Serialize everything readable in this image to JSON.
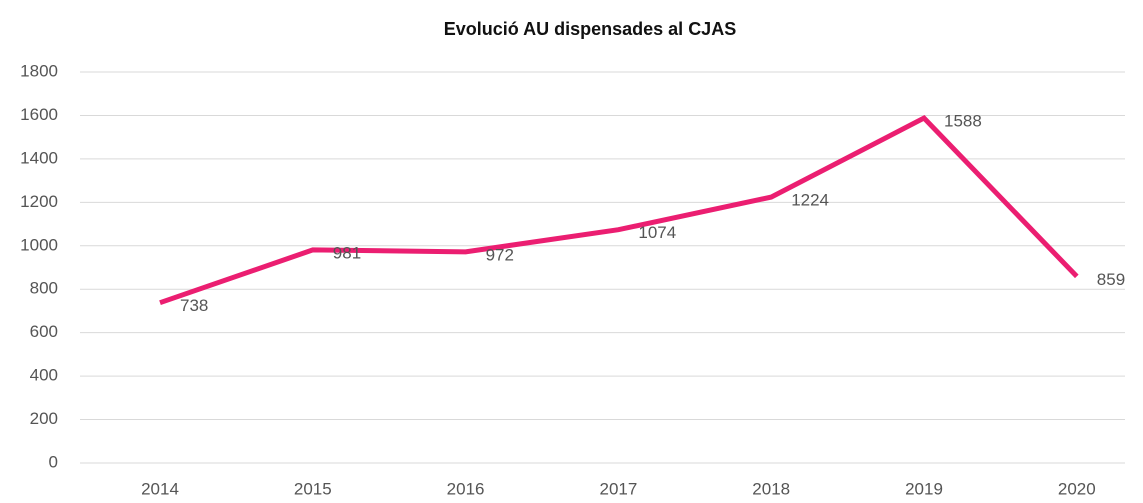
{
  "chart_data": {
    "type": "line",
    "title": "Evolució AU dispensades al CJAS",
    "categories": [
      "2014",
      "2015",
      "2016",
      "2017",
      "2018",
      "2019",
      "2020"
    ],
    "values": [
      738,
      981,
      972,
      1074,
      1224,
      1588,
      859
    ],
    "color": "#eb1e71",
    "ylim": [
      0,
      1800
    ],
    "yticks": [
      0,
      200,
      400,
      600,
      800,
      1000,
      1200,
      1400,
      1600,
      1800
    ],
    "grid": true
  }
}
